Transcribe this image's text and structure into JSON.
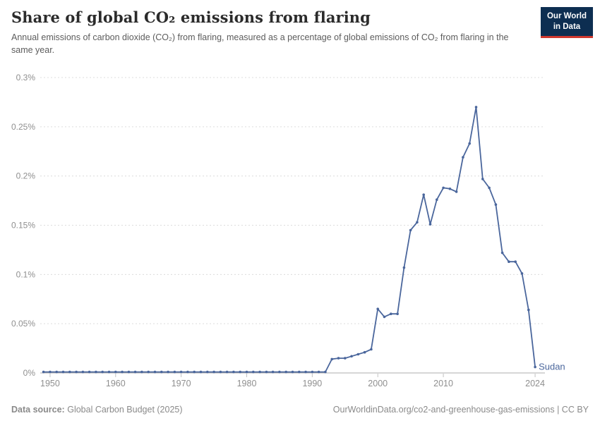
{
  "header": {
    "title": "Share of global CO₂ emissions from flaring",
    "subtitle": "Annual emissions of carbon dioxide (CO₂) from flaring, measured as a percentage of global emissions of CO₂ from flaring in the same year.",
    "logo": {
      "line1": "Our World",
      "line2": "in Data",
      "bg_color": "#0d2e51",
      "accent_color": "#d0382e"
    }
  },
  "chart_data": {
    "type": "line",
    "title": "Share of global CO₂ emissions from flaring",
    "xlabel": "",
    "ylabel": "",
    "xlim": [
      1948.5,
      2025.5
    ],
    "ylim": [
      0,
      0.3
    ],
    "grid": "horizontal-dashed",
    "legend_position": "end-of-line-label",
    "x_ticks": [
      1950,
      1960,
      1970,
      1980,
      1990,
      2000,
      2010,
      2024
    ],
    "y_ticks": [
      0,
      0.05,
      0.1,
      0.15,
      0.2,
      0.25,
      0.3
    ],
    "y_tick_labels": [
      "0%",
      "0.05%",
      "0.1%",
      "0.15%",
      "0.2%",
      "0.25%",
      "0.3%"
    ],
    "series": [
      {
        "name": "Sudan",
        "color": "#4a669c",
        "points": [
          [
            1949,
            0.001
          ],
          [
            1950,
            0.001
          ],
          [
            1951,
            0.001
          ],
          [
            1952,
            0.001
          ],
          [
            1953,
            0.001
          ],
          [
            1954,
            0.001
          ],
          [
            1955,
            0.001
          ],
          [
            1956,
            0.001
          ],
          [
            1957,
            0.001
          ],
          [
            1958,
            0.001
          ],
          [
            1959,
            0.001
          ],
          [
            1960,
            0.001
          ],
          [
            1961,
            0.001
          ],
          [
            1962,
            0.001
          ],
          [
            1963,
            0.001
          ],
          [
            1964,
            0.001
          ],
          [
            1965,
            0.001
          ],
          [
            1966,
            0.001
          ],
          [
            1967,
            0.001
          ],
          [
            1968,
            0.001
          ],
          [
            1969,
            0.001
          ],
          [
            1970,
            0.001
          ],
          [
            1971,
            0.001
          ],
          [
            1972,
            0.001
          ],
          [
            1973,
            0.001
          ],
          [
            1974,
            0.001
          ],
          [
            1975,
            0.001
          ],
          [
            1976,
            0.001
          ],
          [
            1977,
            0.001
          ],
          [
            1978,
            0.001
          ],
          [
            1979,
            0.001
          ],
          [
            1980,
            0.001
          ],
          [
            1981,
            0.001
          ],
          [
            1982,
            0.001
          ],
          [
            1983,
            0.001
          ],
          [
            1984,
            0.001
          ],
          [
            1985,
            0.001
          ],
          [
            1986,
            0.001
          ],
          [
            1987,
            0.001
          ],
          [
            1988,
            0.001
          ],
          [
            1989,
            0.001
          ],
          [
            1990,
            0.001
          ],
          [
            1991,
            0.001
          ],
          [
            1992,
            0.001
          ],
          [
            1993,
            0.014
          ],
          [
            1994,
            0.015
          ],
          [
            1995,
            0.015
          ],
          [
            1996,
            0.017
          ],
          [
            1997,
            0.019
          ],
          [
            1998,
            0.021
          ],
          [
            1999,
            0.024
          ],
          [
            2000,
            0.065
          ],
          [
            2001,
            0.057
          ],
          [
            2002,
            0.06
          ],
          [
            2003,
            0.06
          ],
          [
            2004,
            0.107
          ],
          [
            2005,
            0.145
          ],
          [
            2006,
            0.153
          ],
          [
            2007,
            0.181
          ],
          [
            2008,
            0.151
          ],
          [
            2009,
            0.176
          ],
          [
            2010,
            0.188
          ],
          [
            2011,
            0.187
          ],
          [
            2012,
            0.184
          ],
          [
            2013,
            0.219
          ],
          [
            2014,
            0.233
          ],
          [
            2015,
            0.27
          ],
          [
            2016,
            0.197
          ],
          [
            2017,
            0.188
          ],
          [
            2018,
            0.171
          ],
          [
            2019,
            0.122
          ],
          [
            2020,
            0.113
          ],
          [
            2021,
            0.113
          ],
          [
            2022,
            0.101
          ],
          [
            2023,
            0.064
          ],
          [
            2024,
            0.006
          ]
        ]
      }
    ],
    "colors": {
      "line": "#4a669c",
      "gridline": "#dcdcdc",
      "axis_line": "#adadad",
      "tick_mark": "#c2c2c2",
      "axis_text": "#8f8f8f"
    }
  },
  "footer": {
    "source_label": "Data source:",
    "source_value": "Global Carbon Budget (2025)",
    "license_text": "OurWorldinData.org/co2-and-greenhouse-gas-emissions | CC BY"
  }
}
